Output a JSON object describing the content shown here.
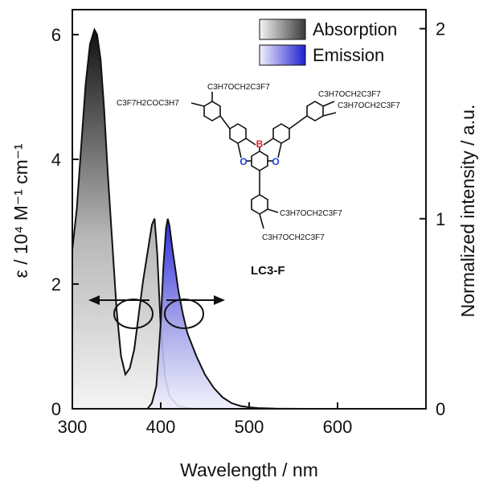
{
  "chart_data": {
    "type": "area",
    "x_label": "Wavelength  / nm",
    "y_label_left": "ε / 10⁴ M⁻¹ cm⁻¹",
    "y_label_right": "Normalized intensity / a.u.",
    "xlim": [
      300,
      700
    ],
    "ylim_left": [
      0,
      6.4
    ],
    "ylim_right": [
      0,
      2.1
    ],
    "x_ticks": [
      300,
      400,
      500,
      600
    ],
    "y_ticks_left": [
      0,
      2,
      4,
      6
    ],
    "y_ticks_right": [
      0,
      1,
      2
    ],
    "legend_position": "top-right",
    "grid": false,
    "series": [
      {
        "name": "Absorption",
        "axis": "left",
        "color": "#555555",
        "fill": "gradient-dark-gray",
        "x": [
          300,
          305,
          310,
          315,
          320,
          325,
          328,
          332,
          336,
          340,
          345,
          350,
          355,
          360,
          365,
          370,
          375,
          380,
          385,
          390,
          393,
          396,
          400,
          405,
          410,
          420,
          440,
          460,
          500,
          600,
          700
        ],
        "y": [
          2.55,
          3.2,
          4.2,
          5.2,
          5.85,
          6.08,
          6.0,
          5.6,
          4.8,
          3.8,
          2.7,
          1.6,
          0.85,
          0.55,
          0.65,
          0.95,
          1.5,
          2.05,
          2.5,
          2.95,
          3.05,
          2.5,
          1.3,
          0.5,
          0.2,
          0.04,
          0.0,
          0.0,
          0.0,
          0.0,
          0.0
        ]
      },
      {
        "name": "Emission",
        "axis": "right",
        "color": "#3a3ad8",
        "fill": "gradient-blue",
        "x": [
          385,
          390,
          395,
          400,
          403,
          406,
          408,
          410,
          413,
          417,
          420,
          425,
          430,
          440,
          450,
          460,
          470,
          480,
          490,
          500,
          510,
          530,
          560,
          600,
          700
        ],
        "y": [
          0.0,
          0.03,
          0.12,
          0.45,
          0.75,
          0.95,
          1.0,
          0.96,
          0.85,
          0.72,
          0.62,
          0.5,
          0.4,
          0.28,
          0.18,
          0.11,
          0.06,
          0.03,
          0.015,
          0.008,
          0.004,
          0.001,
          0.0,
          0.0,
          0.0
        ]
      }
    ],
    "compound_label": "LC3-F",
    "formula_labels": {
      "top_left_1": "C3F7H2COC3H7",
      "top_left_2": "C3H7OCH2C3F7",
      "top_right_1": "C3H7OCH2C3F7",
      "top_right_2": "C3H7OCH2C3F7",
      "bottom_1": "C3H7OCH2C3F7",
      "bottom_2": "C3H7OCH2C3F7"
    },
    "atom_labels": {
      "boron": "B",
      "oxygen_left": "O",
      "oxygen_right": "O"
    }
  }
}
